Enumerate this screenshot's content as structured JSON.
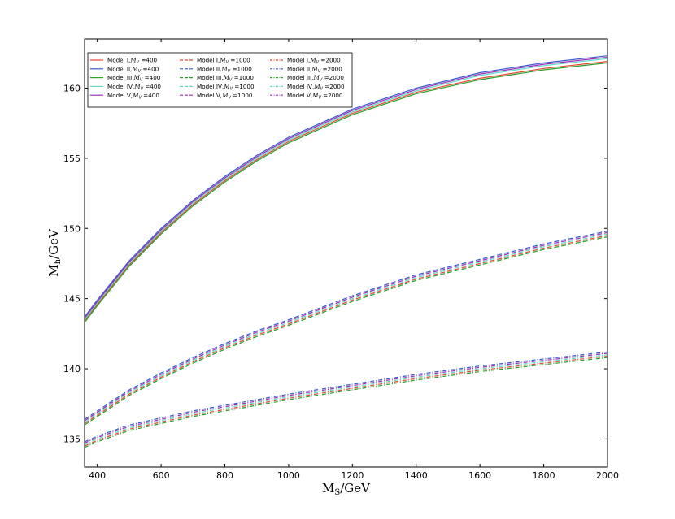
{
  "chart_data": {
    "type": "line",
    "title": "",
    "xlabel": "M_S/GeV",
    "ylabel": "M_h/GeV",
    "xlabel_main": "M",
    "xlabel_sub": "S",
    "xlabel_unit": "/GeV",
    "ylabel_main": "M",
    "ylabel_sub": "h",
    "ylabel_unit": "/GeV",
    "xlim": [
      360,
      2000
    ],
    "ylim": [
      133,
      163.5
    ],
    "xticks": [
      400,
      600,
      800,
      1000,
      1200,
      1400,
      1600,
      1800,
      2000
    ],
    "yticks": [
      135,
      140,
      145,
      150,
      155,
      160
    ],
    "grid": false,
    "legend_placement": "top-left",
    "legend_columns": 3,
    "x": [
      360,
      400,
      500,
      600,
      700,
      800,
      900,
      1000,
      1200,
      1400,
      1600,
      1800,
      2000
    ],
    "series": [
      {
        "name": "Model I,$M_V=$400",
        "label_prefix": "Model I,",
        "mv": "400",
        "color": "#e24a33",
        "dash": "solid",
        "values": [
          143.4,
          144.6,
          147.4,
          149.7,
          151.7,
          153.4,
          154.9,
          156.2,
          158.2,
          159.7,
          160.7,
          161.4,
          161.9
        ]
      },
      {
        "name": "Model II,$M_V=$400",
        "label_prefix": "Model II,",
        "mv": "400",
        "color": "#3b5ccc",
        "dash": "solid",
        "values": [
          143.7,
          144.9,
          147.7,
          150.0,
          152.0,
          153.7,
          155.2,
          156.5,
          158.5,
          160.0,
          161.1,
          161.8,
          162.3
        ]
      },
      {
        "name": "Model III,$M_V=$400",
        "label_prefix": "Model III,",
        "mv": "400",
        "color": "#2ca02c",
        "dash": "solid",
        "values": [
          143.3,
          144.5,
          147.3,
          149.6,
          151.6,
          153.3,
          154.8,
          156.1,
          158.1,
          159.6,
          160.6,
          161.3,
          161.8
        ]
      },
      {
        "name": "Model IV,$M_V=$400",
        "label_prefix": "Model IV,",
        "mv": "400",
        "color": "#66d9c8",
        "dash": "solid",
        "values": [
          143.5,
          144.7,
          147.5,
          149.8,
          151.8,
          153.5,
          155.0,
          156.3,
          158.3,
          159.8,
          160.9,
          161.6,
          162.1
        ]
      },
      {
        "name": "Model V,$M_V=$400",
        "label_prefix": "Model V,",
        "mv": "400",
        "color": "#9b30b8",
        "dash": "solid",
        "values": [
          143.6,
          144.8,
          147.6,
          149.9,
          151.9,
          153.6,
          155.1,
          156.4,
          158.4,
          159.9,
          161.0,
          161.7,
          162.2
        ]
      },
      {
        "name": "Model I,$M_V=$1000",
        "label_prefix": "Model I,",
        "mv": "1000",
        "color": "#e24a33",
        "dash": "dashed",
        "values": [
          136.1,
          136.7,
          138.2,
          139.4,
          140.5,
          141.5,
          142.4,
          143.2,
          144.9,
          146.4,
          147.5,
          148.6,
          149.5
        ]
      },
      {
        "name": "Model II,$M_V=$1000",
        "label_prefix": "Model II,",
        "mv": "1000",
        "color": "#3b5ccc",
        "dash": "dashed",
        "values": [
          136.4,
          137.0,
          138.5,
          139.7,
          140.8,
          141.8,
          142.7,
          143.5,
          145.2,
          146.7,
          147.8,
          148.9,
          149.8
        ]
      },
      {
        "name": "Model III,$M_V=$1000",
        "label_prefix": "Model III,",
        "mv": "1000",
        "color": "#2ca02c",
        "dash": "dashed",
        "values": [
          136.0,
          136.6,
          138.1,
          139.3,
          140.4,
          141.4,
          142.3,
          143.1,
          144.8,
          146.3,
          147.4,
          148.5,
          149.4
        ]
      },
      {
        "name": "Model IV,$M_V=$1000",
        "label_prefix": "Model IV,",
        "mv": "1000",
        "color": "#66d9c8",
        "dash": "dashed",
        "values": [
          136.2,
          136.8,
          138.3,
          139.5,
          140.6,
          141.6,
          142.5,
          143.3,
          145.0,
          146.5,
          147.6,
          148.7,
          149.6
        ]
      },
      {
        "name": "Model V,$M_V=$1000",
        "label_prefix": "Model V,",
        "mv": "1000",
        "color": "#9b30b8",
        "dash": "dashed",
        "values": [
          136.3,
          136.9,
          138.4,
          139.6,
          140.7,
          141.7,
          142.6,
          143.4,
          145.1,
          146.6,
          147.7,
          148.8,
          149.7
        ]
      },
      {
        "name": "Model I,$M_V=$2000",
        "label_prefix": "Model I,",
        "mv": "2000",
        "color": "#e24a33",
        "dash": "dashdot",
        "values": [
          134.5,
          134.9,
          135.7,
          136.2,
          136.7,
          137.1,
          137.5,
          137.9,
          138.6,
          139.3,
          139.9,
          140.4,
          140.9
        ]
      },
      {
        "name": "Model II,$M_V=$2000",
        "label_prefix": "Model II,",
        "mv": "2000",
        "color": "#3b5ccc",
        "dash": "dashdot",
        "values": [
          134.8,
          135.2,
          136.0,
          136.5,
          137.0,
          137.4,
          137.8,
          138.2,
          138.9,
          139.6,
          140.2,
          140.7,
          141.2
        ]
      },
      {
        "name": "Model III,$M_V=$2000",
        "label_prefix": "Model III,",
        "mv": "2000",
        "color": "#2ca02c",
        "dash": "dashdot",
        "values": [
          134.4,
          134.8,
          135.6,
          136.1,
          136.6,
          137.0,
          137.4,
          137.8,
          138.5,
          139.2,
          139.8,
          140.3,
          140.8
        ]
      },
      {
        "name": "Model IV,$M_V=$2000",
        "label_prefix": "Model IV,",
        "mv": "2000",
        "color": "#66d9c8",
        "dash": "dashdot",
        "values": [
          134.6,
          135.0,
          135.8,
          136.3,
          136.8,
          137.2,
          137.6,
          138.0,
          138.7,
          139.4,
          140.0,
          140.5,
          141.0
        ]
      },
      {
        "name": "Model V,$M_V=$2000",
        "label_prefix": "Model V,",
        "mv": "2000",
        "color": "#9b30b8",
        "dash": "dashdot",
        "values": [
          134.7,
          135.1,
          135.9,
          136.4,
          136.9,
          137.3,
          137.7,
          138.1,
          138.8,
          139.5,
          140.1,
          140.6,
          141.1
        ]
      }
    ]
  }
}
